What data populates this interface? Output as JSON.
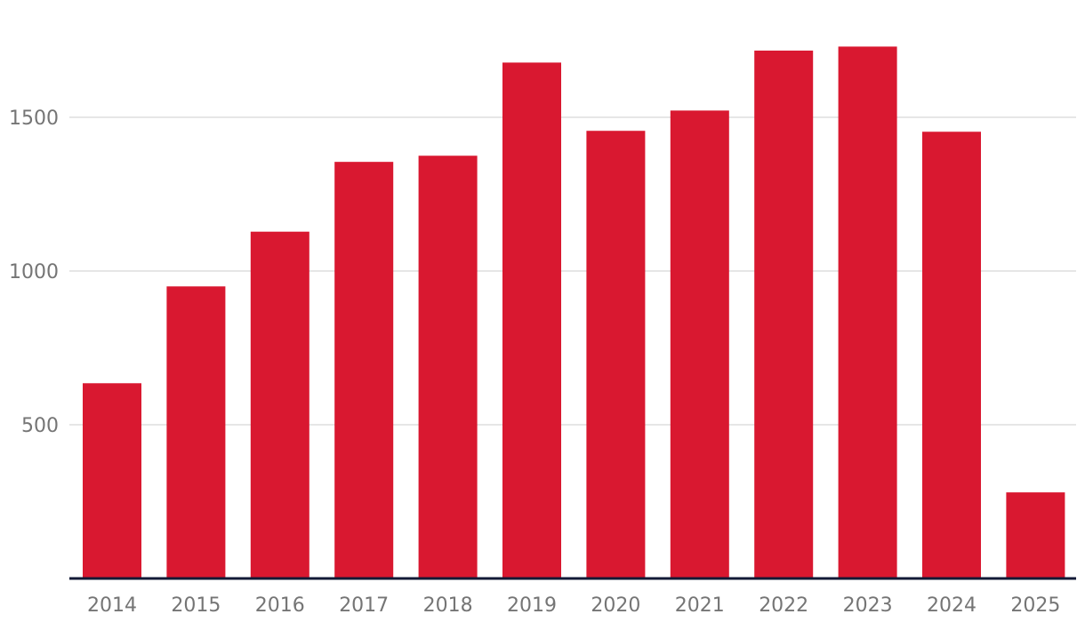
{
  "chart_data": {
    "type": "bar",
    "categories": [
      "2014",
      "2015",
      "2016",
      "2017",
      "2018",
      "2019",
      "2020",
      "2021",
      "2022",
      "2023",
      "2024",
      "2025"
    ],
    "values": [
      635,
      950,
      1128,
      1355,
      1375,
      1678,
      1456,
      1522,
      1717,
      1730,
      1453,
      280
    ],
    "title": "",
    "xlabel": "",
    "ylabel": "",
    "ylim": [
      0,
      1750
    ],
    "yticks": [
      500,
      1000,
      1500
    ],
    "grid": true,
    "bar_color": "#d91830",
    "baseline_color": "#121a36",
    "grid_color": "#dedede",
    "label_color": "#757575"
  }
}
